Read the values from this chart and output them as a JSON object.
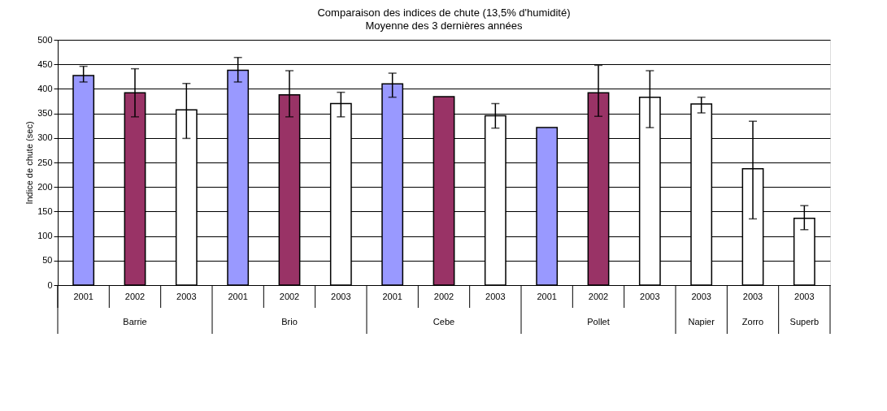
{
  "chart_data": {
    "type": "bar",
    "title": "Comparaison des indices de chute (13,5% d'humidité)",
    "subtitle": "Moyenne des 3 dernières années",
    "ylabel": "Indice de chute (sec)",
    "categories": [
      "2001",
      "2002",
      "2003",
      "2001",
      "2002",
      "2003",
      "2001",
      "2002",
      "2003",
      "2001",
      "2002",
      "2003",
      "2003",
      "2003",
      "2003"
    ],
    "values": [
      427,
      392,
      357,
      438,
      388,
      370,
      410,
      384,
      345,
      321,
      392,
      383,
      369,
      237,
      136
    ],
    "colors": [
      "#9999ff",
      "#993366",
      "#ffffff",
      "#9999ff",
      "#993366",
      "#ffffff",
      "#9999ff",
      "#993366",
      "#ffffff",
      "#9999ff",
      "#993366",
      "#ffffff",
      "#ffffff",
      "#ffffff",
      "#ffffff"
    ],
    "errors": [
      [
        414,
        446
      ],
      [
        343,
        441
      ],
      [
        299,
        411
      ],
      [
        414,
        464
      ],
      [
        343,
        437
      ],
      [
        343,
        393
      ],
      [
        383,
        432
      ],
      null,
      [
        320,
        370
      ],
      null,
      [
        344,
        448
      ],
      [
        321,
        437
      ],
      [
        351,
        383
      ],
      [
        135,
        334
      ],
      [
        113,
        162
      ]
    ],
    "annotations": [
      "Barrie",
      "Brio",
      "Cebe",
      "Pollet",
      "Napier",
      "Zorro",
      "Superb"
    ],
    "ylim": [
      0,
      500
    ],
    "yticks": [
      0,
      50,
      100,
      150,
      200,
      250,
      300,
      350,
      400,
      450,
      500
    ],
    "grid": "y"
  }
}
